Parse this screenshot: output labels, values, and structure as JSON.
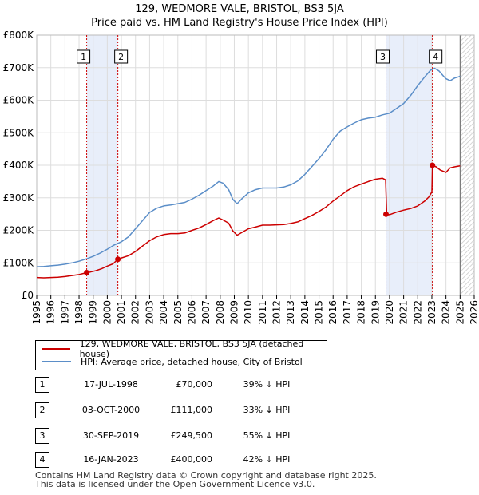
{
  "chart_data": {
    "type": "line",
    "title": "129, WEDMORE VALE, BRISTOL, BS3 5JA",
    "subtitle": "Price paid vs. HM Land Registry's House Price Index (HPI)",
    "xlabel": "",
    "ylabel": "",
    "xlim": [
      1995,
      2026
    ],
    "ylim": [
      0,
      800000
    ],
    "x_ticks": [
      "1995",
      "1996",
      "1997",
      "1998",
      "1999",
      "2000",
      "2001",
      "2002",
      "2003",
      "2004",
      "2005",
      "2006",
      "2007",
      "2008",
      "2009",
      "2010",
      "2011",
      "2012",
      "2013",
      "2014",
      "2015",
      "2016",
      "2017",
      "2018",
      "2019",
      "2020",
      "2021",
      "2022",
      "2023",
      "2024",
      "2025",
      "2026"
    ],
    "y_ticks": [
      {
        "value": 0,
        "label": "£0"
      },
      {
        "value": 100000,
        "label": "£100K"
      },
      {
        "value": 200000,
        "label": "£200K"
      },
      {
        "value": 300000,
        "label": "£300K"
      },
      {
        "value": 400000,
        "label": "£400K"
      },
      {
        "value": 500000,
        "label": "£500K"
      },
      {
        "value": 600000,
        "label": "£600K"
      },
      {
        "value": 700000,
        "label": "£700K"
      },
      {
        "value": 800000,
        "label": "£800K"
      }
    ],
    "grid": true,
    "forecast_start": 2025.0,
    "series": [
      {
        "name": "129, WEDMORE VALE, BRISTOL, BS3 5JA (detached house)",
        "color": "#cc0000",
        "x": [
          1995.0,
          1995.5,
          1996.0,
          1996.5,
          1997.0,
          1997.5,
          1998.0,
          1998.54,
          1998.8,
          1999.2,
          1999.6,
          2000.0,
          2000.4,
          2000.75,
          2001.0,
          2001.5,
          2002.0,
          2002.5,
          2003.0,
          2003.5,
          2004.0,
          2004.5,
          2005.0,
          2005.5,
          2006.0,
          2006.5,
          2007.0,
          2007.5,
          2007.9,
          2008.2,
          2008.6,
          2008.9,
          2009.2,
          2009.6,
          2010.0,
          2010.5,
          2011.0,
          2011.5,
          2012.0,
          2012.5,
          2013.0,
          2013.5,
          2014.0,
          2014.5,
          2015.0,
          2015.5,
          2016.0,
          2016.5,
          2017.0,
          2017.5,
          2018.0,
          2018.5,
          2019.0,
          2019.5,
          2019.72,
          2019.8,
          2020.0,
          2020.5,
          2021.0,
          2021.5,
          2022.0,
          2022.5,
          2022.8,
          2023.0,
          2023.04,
          2023.3,
          2023.6,
          2024.0,
          2024.3,
          2024.6,
          2025.0
        ],
        "values": [
          55000,
          54000,
          55000,
          56000,
          58000,
          61000,
          64000,
          70000,
          72000,
          76000,
          82000,
          90000,
          97000,
          111000,
          115000,
          122000,
          135000,
          152000,
          168000,
          180000,
          187000,
          190000,
          190000,
          192000,
          200000,
          207000,
          218000,
          230000,
          238000,
          232000,
          222000,
          198000,
          185000,
          195000,
          205000,
          210000,
          216000,
          216000,
          217000,
          218000,
          221000,
          226000,
          236000,
          246000,
          258000,
          272000,
          290000,
          306000,
          322000,
          334000,
          342000,
          350000,
          357000,
          360000,
          355000,
          249500,
          248000,
          256000,
          262000,
          267000,
          275000,
          290000,
          303000,
          318000,
          400000,
          395000,
          385000,
          378000,
          392000,
          395000,
          398000
        ]
      },
      {
        "name": "HPI: Average price, detached house, City of Bristol",
        "color": "#5b8ec8",
        "x": [
          1995.0,
          1995.5,
          1996.0,
          1996.5,
          1997.0,
          1997.5,
          1998.0,
          1998.5,
          1999.0,
          1999.5,
          2000.0,
          2000.5,
          2001.0,
          2001.5,
          2002.0,
          2002.5,
          2003.0,
          2003.5,
          2004.0,
          2004.5,
          2005.0,
          2005.5,
          2006.0,
          2006.5,
          2007.0,
          2007.5,
          2007.9,
          2008.2,
          2008.6,
          2008.9,
          2009.2,
          2009.6,
          2010.0,
          2010.5,
          2011.0,
          2011.5,
          2012.0,
          2012.5,
          2013.0,
          2013.5,
          2014.0,
          2014.5,
          2015.0,
          2015.5,
          2016.0,
          2016.5,
          2017.0,
          2017.5,
          2018.0,
          2018.5,
          2019.0,
          2019.5,
          2020.0,
          2020.5,
          2021.0,
          2021.5,
          2022.0,
          2022.5,
          2022.9,
          2023.2,
          2023.5,
          2023.8,
          2024.0,
          2024.3,
          2024.6,
          2024.9,
          2025.0
        ],
        "values": [
          88000,
          89000,
          91000,
          93000,
          96000,
          100000,
          105000,
          112000,
          120000,
          130000,
          142000,
          155000,
          165000,
          180000,
          205000,
          230000,
          255000,
          268000,
          275000,
          278000,
          282000,
          286000,
          296000,
          308000,
          322000,
          336000,
          350000,
          345000,
          325000,
          295000,
          282000,
          300000,
          315000,
          325000,
          330000,
          330000,
          330000,
          333000,
          340000,
          352000,
          372000,
          396000,
          420000,
          448000,
          480000,
          505000,
          518000,
          530000,
          540000,
          545000,
          548000,
          555000,
          560000,
          575000,
          590000,
          615000,
          645000,
          672000,
          692000,
          698000,
          690000,
          675000,
          666000,
          660000,
          668000,
          672000,
          674000
        ]
      }
    ],
    "sale_markers": [
      {
        "id": "1",
        "x": 1998.54,
        "value": 70000
      },
      {
        "id": "2",
        "x": 2000.75,
        "value": 111000
      },
      {
        "id": "3",
        "x": 2019.75,
        "value": 249500
      },
      {
        "id": "4",
        "x": 2023.04,
        "value": 400000
      }
    ]
  },
  "legend": {
    "property_label": "129, WEDMORE VALE, BRISTOL, BS3 5JA (detached house)",
    "hpi_label": "HPI: Average price, detached house, City of Bristol",
    "property_color": "#cc0000",
    "hpi_color": "#5b8ec8"
  },
  "transactions": [
    {
      "id": "1",
      "date": "17-JUL-1998",
      "price": "£70,000",
      "hpi": "39% ↓ HPI"
    },
    {
      "id": "2",
      "date": "03-OCT-2000",
      "price": "£111,000",
      "hpi": "33% ↓ HPI"
    },
    {
      "id": "3",
      "date": "30-SEP-2019",
      "price": "£249,500",
      "hpi": "55% ↓ HPI"
    },
    {
      "id": "4",
      "date": "16-JAN-2023",
      "price": "£400,000",
      "hpi": "42% ↓ HPI"
    }
  ],
  "footer": {
    "line1": "Contains HM Land Registry data © Crown copyright and database right 2025.",
    "line2": "This data is licensed under the Open Government Licence v3.0."
  }
}
